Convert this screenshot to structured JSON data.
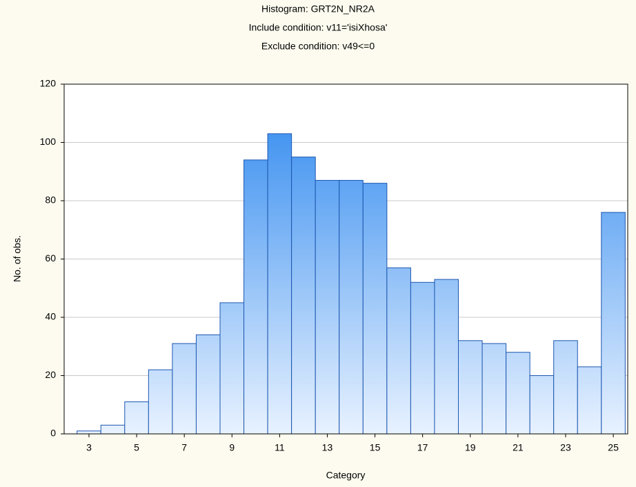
{
  "chart_data": {
    "type": "bar",
    "title": "Histogram: GRT2N_NR2A",
    "subtitle": "Include condition: v11='isiXhosa'",
    "subtitle2": "Exclude condition: v49<=0",
    "x_label": "Category",
    "y_label": "No. of obs.",
    "categories": [
      "3",
      null,
      "5",
      null,
      "7",
      null,
      "9",
      null,
      "11",
      null,
      "13",
      null,
      "15",
      null,
      "17",
      null,
      "19",
      null,
      "21",
      null,
      "23",
      null,
      "25"
    ],
    "values": [
      1,
      3,
      11,
      22,
      31,
      34,
      45,
      94,
      103,
      95,
      87,
      87,
      86,
      57,
      52,
      53,
      32,
      31,
      28,
      20,
      32,
      23,
      76
    ],
    "color": "#2a86ee",
    "ylim": [
      0,
      120
    ],
    "yticks": [
      0,
      20,
      40,
      60,
      80,
      100,
      120
    ],
    "grid": true
  }
}
